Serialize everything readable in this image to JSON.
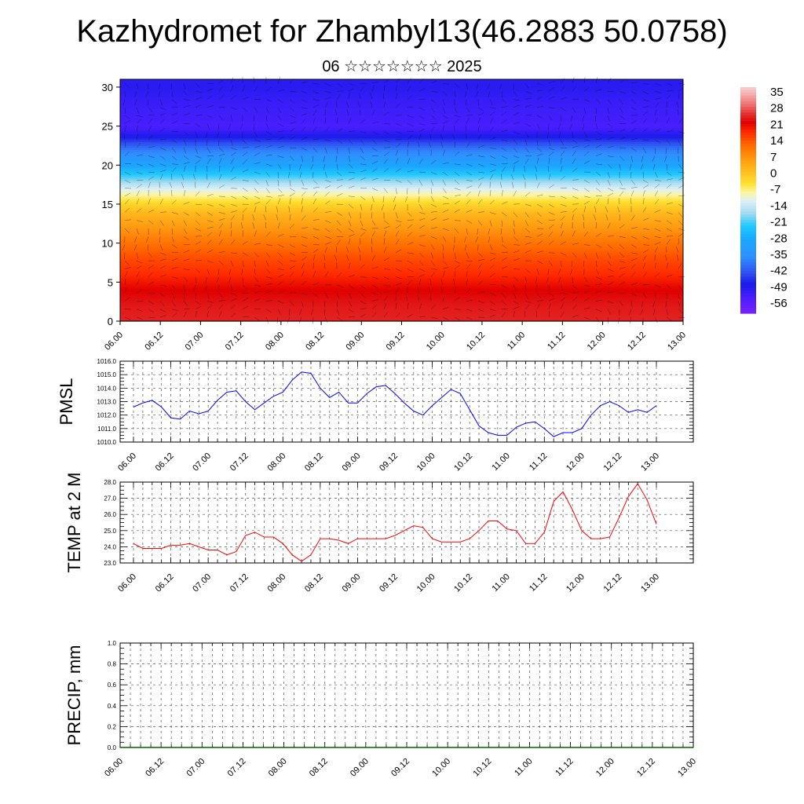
{
  "header": {
    "title": "Kazhydromet for Zhambyl13(46.2883 50.0758)",
    "subtitle": "06 ☆☆☆☆☆☆☆ 2025"
  },
  "chart_data": [
    {
      "type": "heatmap",
      "panel": "profile",
      "title": "",
      "xlabel": "",
      "ylabel": "",
      "x_ticks": [
        "06.00",
        "06.12",
        "07.00",
        "07.12",
        "08.00",
        "08.12",
        "09.00",
        "09.12",
        "10.00",
        "10.12",
        "11.00",
        "11.12",
        "12.00",
        "12.12",
        "13.00"
      ],
      "y_ticks": [
        0,
        5,
        10,
        15,
        20,
        25,
        30
      ],
      "ylim": [
        0,
        31
      ],
      "colorbar_labels": [
        35,
        28,
        21,
        14,
        7,
        0,
        -7,
        -14,
        -21,
        -28,
        -35,
        -42,
        -49,
        -56
      ],
      "colorbar_range": [
        -63,
        38
      ],
      "vertical_profile": {
        "levels": [
          0,
          2,
          4,
          6,
          8,
          10,
          12,
          14,
          15,
          16,
          17,
          18,
          19,
          20,
          21,
          22,
          23,
          24,
          25,
          26,
          28,
          30,
          31
        ],
        "values": [
          25,
          24,
          22,
          18,
          15,
          11,
          6,
          1,
          -3,
          -8,
          -13,
          -19,
          -25,
          -31,
          -36,
          -40,
          -46,
          -52,
          -56,
          -55,
          -54,
          -52,
          -52
        ]
      },
      "overlay": "wind barbs"
    },
    {
      "type": "line",
      "panel": "pmsl",
      "ylabel": "PMSL",
      "color": "#0000ff",
      "ylim": [
        1010.0,
        1016.0
      ],
      "y_ticks": [
        "1010.0",
        "1011.0",
        "1012.0",
        "1013.0",
        "1014.0",
        "1015.0",
        "1016.0"
      ],
      "x_ticks": [
        "06.00",
        "06.12",
        "07.00",
        "07.12",
        "08.00",
        "08.12",
        "09.00",
        "09.12",
        "10.00",
        "10.12",
        "11.00",
        "11.12",
        "12.00",
        "12.12",
        "13.00"
      ],
      "x_hours": [
        0,
        3,
        6,
        9,
        12,
        15,
        18,
        21,
        24,
        27,
        30,
        33,
        36,
        39,
        42,
        45,
        48,
        51,
        54,
        57,
        60,
        63,
        66,
        69,
        72,
        75,
        78,
        81,
        84,
        87,
        90,
        93,
        96,
        99,
        102,
        105,
        108,
        111,
        114,
        117,
        120,
        123,
        126,
        129,
        132,
        135,
        138,
        141,
        144,
        147,
        150,
        153,
        156,
        159,
        162,
        165,
        168
      ],
      "values": [
        1012.6,
        1012.9,
        1013.1,
        1012.6,
        1011.8,
        1011.7,
        1012.3,
        1012.1,
        1012.3,
        1013.1,
        1013.7,
        1013.8,
        1013.0,
        1012.4,
        1012.9,
        1013.4,
        1013.7,
        1014.6,
        1015.2,
        1015.1,
        1014.0,
        1013.3,
        1013.7,
        1012.9,
        1012.9,
        1013.6,
        1014.1,
        1014.2,
        1013.6,
        1012.9,
        1012.3,
        1012.0,
        1012.7,
        1013.3,
        1013.9,
        1013.6,
        1012.4,
        1011.2,
        1010.7,
        1010.5,
        1010.5,
        1011.1,
        1011.4,
        1011.5,
        1011.0,
        1010.4,
        1010.7,
        1010.7,
        1011.0,
        1012.0,
        1012.7,
        1013.0,
        1012.7,
        1012.2,
        1012.4,
        1012.2,
        1012.7
      ]
    },
    {
      "type": "line",
      "panel": "temp",
      "ylabel": "TEMP at 2 M",
      "color": "#ff0000",
      "ylim": [
        23.0,
        28.0
      ],
      "y_ticks": [
        "23.0",
        "24.0",
        "25.0",
        "26.0",
        "27.0",
        "28.0"
      ],
      "x_ticks": [
        "06.00",
        "06.12",
        "07.00",
        "07.12",
        "08.00",
        "08.12",
        "09.00",
        "09.12",
        "10.00",
        "10.12",
        "11.00",
        "11.12",
        "12.00",
        "12.12",
        "13.00"
      ],
      "x_hours": [
        0,
        3,
        6,
        9,
        12,
        15,
        18,
        21,
        24,
        27,
        30,
        33,
        36,
        39,
        42,
        45,
        48,
        51,
        54,
        57,
        60,
        63,
        66,
        69,
        72,
        75,
        78,
        81,
        84,
        87,
        90,
        93,
        96,
        99,
        102,
        105,
        108,
        111,
        114,
        117,
        120,
        123,
        126,
        129,
        132,
        135,
        138,
        141,
        144,
        147,
        150,
        153,
        156,
        159,
        162,
        165,
        168
      ],
      "values": [
        24.2,
        23.9,
        23.9,
        23.9,
        24.1,
        24.1,
        24.2,
        24.0,
        23.8,
        23.8,
        23.5,
        23.7,
        24.7,
        24.9,
        24.6,
        24.6,
        24.2,
        23.5,
        23.1,
        23.5,
        24.5,
        24.5,
        24.4,
        24.2,
        24.5,
        24.5,
        24.5,
        24.5,
        24.7,
        25.0,
        25.3,
        25.2,
        24.5,
        24.3,
        24.3,
        24.3,
        24.5,
        25.0,
        25.6,
        25.6,
        25.1,
        25.0,
        24.2,
        24.2,
        24.9,
        26.8,
        27.4,
        26.3,
        25.0,
        24.5,
        24.5,
        24.6,
        25.8,
        27.1,
        27.9,
        26.9,
        25.4
      ]
    },
    {
      "type": "bar",
      "panel": "precip",
      "ylabel": "PRECIP, mm",
      "color": "#006400",
      "ylim": [
        0.0,
        1.0
      ],
      "y_ticks": [
        "0.0",
        "0.2",
        "0.4",
        "0.6",
        "0.8",
        "1.0"
      ],
      "x_ticks": [
        "06.00",
        "06.12",
        "07.00",
        "07.12",
        "08.00",
        "08.12",
        "09.00",
        "09.12",
        "10.00",
        "10.12",
        "11.00",
        "11.12",
        "12.00",
        "12.12",
        "13.00"
      ],
      "values_all": 0.0
    }
  ]
}
